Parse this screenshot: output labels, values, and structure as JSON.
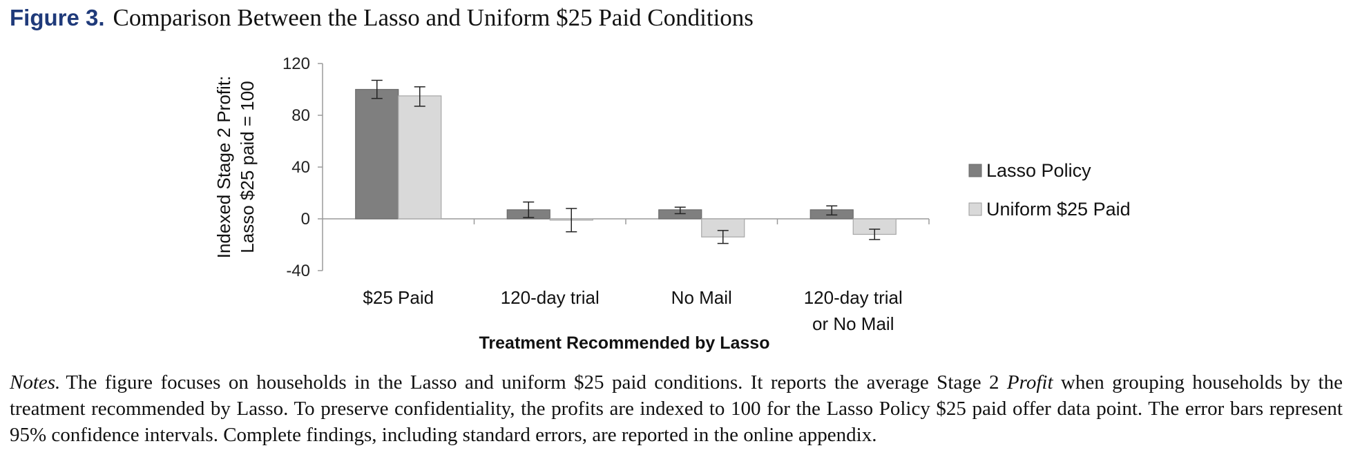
{
  "figure": {
    "label": "Figure 3.",
    "title": "Comparison Between the Lasso and Uniform $25 Paid Conditions"
  },
  "notes": {
    "label": "Notes.",
    "text_before": "The figure focuses on households in the Lasso and uniform $25 paid conditions. It reports the average Stage 2 ",
    "emphasis": "Profit",
    "text_after": " when grouping households by the treatment recommended by Lasso. To preserve confidentiality, the profits are indexed to 100 for the Lasso Policy $25 paid offer data point. The error bars represent 95% confidence intervals. Complete findings, including standard errors, are reported in the online appendix."
  },
  "chart_data": {
    "type": "bar",
    "xlabel": "Treatment Recommended by Lasso",
    "ylabel_lines": [
      "Indexed Stage 2 Profit:",
      "Lasso $25 paid = 100"
    ],
    "ylim": [
      -40,
      120
    ],
    "yticks": [
      -40,
      0,
      40,
      80,
      120
    ],
    "categories": [
      [
        "$25 Paid"
      ],
      [
        "120-day trial"
      ],
      [
        "No Mail"
      ],
      [
        "120-day trial",
        "or No Mail"
      ]
    ],
    "series": [
      {
        "name": "Lasso Policy",
        "color": "#7f7f7f",
        "values": [
          100,
          7,
          7,
          7
        ],
        "ci_low": [
          93,
          1,
          4,
          3
        ],
        "ci_high": [
          107,
          13,
          9,
          10
        ]
      },
      {
        "name": "Uniform $25 Paid",
        "color": "#d9d9d9",
        "values": [
          95,
          -1,
          -14,
          -12
        ],
        "ci_low": [
          87,
          -10,
          -19,
          -16
        ],
        "ci_high": [
          102,
          8,
          -9,
          -8
        ]
      }
    ],
    "legend_position": "right",
    "grid": false
  }
}
